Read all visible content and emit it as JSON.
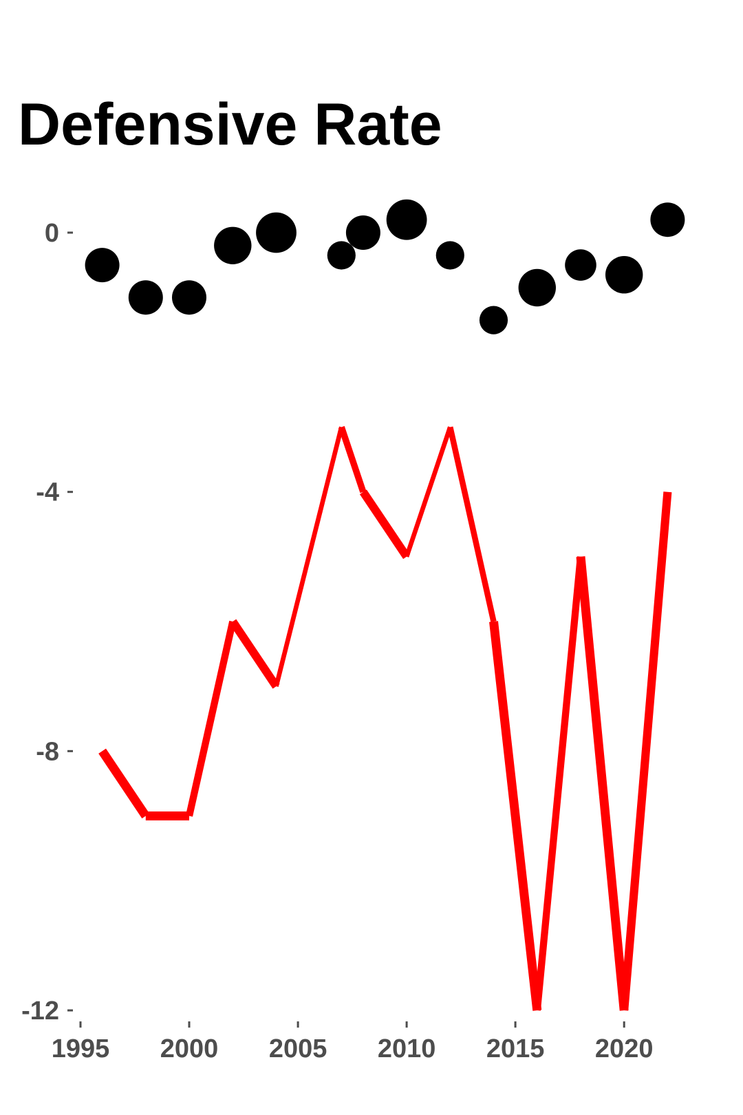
{
  "chart_data": {
    "type": "line",
    "title": "Defensive Rate",
    "xlabel": "",
    "ylabel": "",
    "xlim": [
      1995,
      2023
    ],
    "ylim": [
      -12,
      0
    ],
    "x_ticks": [
      1995,
      2000,
      2005,
      2010,
      2015,
      2020
    ],
    "y_ticks": [
      0,
      -4,
      -8,
      -12
    ],
    "grid": false,
    "legend": "none",
    "colors": {
      "line": "#ff0000",
      "points": "#000000",
      "tick_label": "#4d4d4d",
      "title": "#000000"
    },
    "series": [
      {
        "type": "line",
        "x": [
          1996,
          1998,
          2000,
          2002,
          2004,
          2007,
          2008,
          2010,
          2012,
          2014,
          2016,
          2018,
          2020,
          2022
        ],
        "values": [
          -8,
          -9,
          -9,
          -6,
          -7,
          -3,
          -4,
          -5,
          -3,
          -6,
          -12,
          -5,
          -12,
          -4
        ],
        "weights": [
          6,
          10,
          10,
          7,
          9,
          3,
          6,
          9,
          3,
          5,
          10,
          7,
          10,
          9
        ]
      },
      {
        "type": "scatter",
        "x": [
          1996,
          1998,
          2000,
          2002,
          2004,
          2007,
          2008,
          2010,
          2012,
          2014,
          2016,
          2018,
          2020,
          2022
        ],
        "values": [
          -0.5,
          -1,
          -1,
          -0.2,
          0,
          -0.35,
          0,
          0.2,
          -0.35,
          -1.35,
          -0.85,
          -0.5,
          -0.65,
          0.2
        ],
        "sizes": [
          5,
          5,
          5,
          6,
          7,
          3,
          5,
          7,
          3,
          3,
          6,
          4,
          6,
          5
        ]
      }
    ]
  }
}
